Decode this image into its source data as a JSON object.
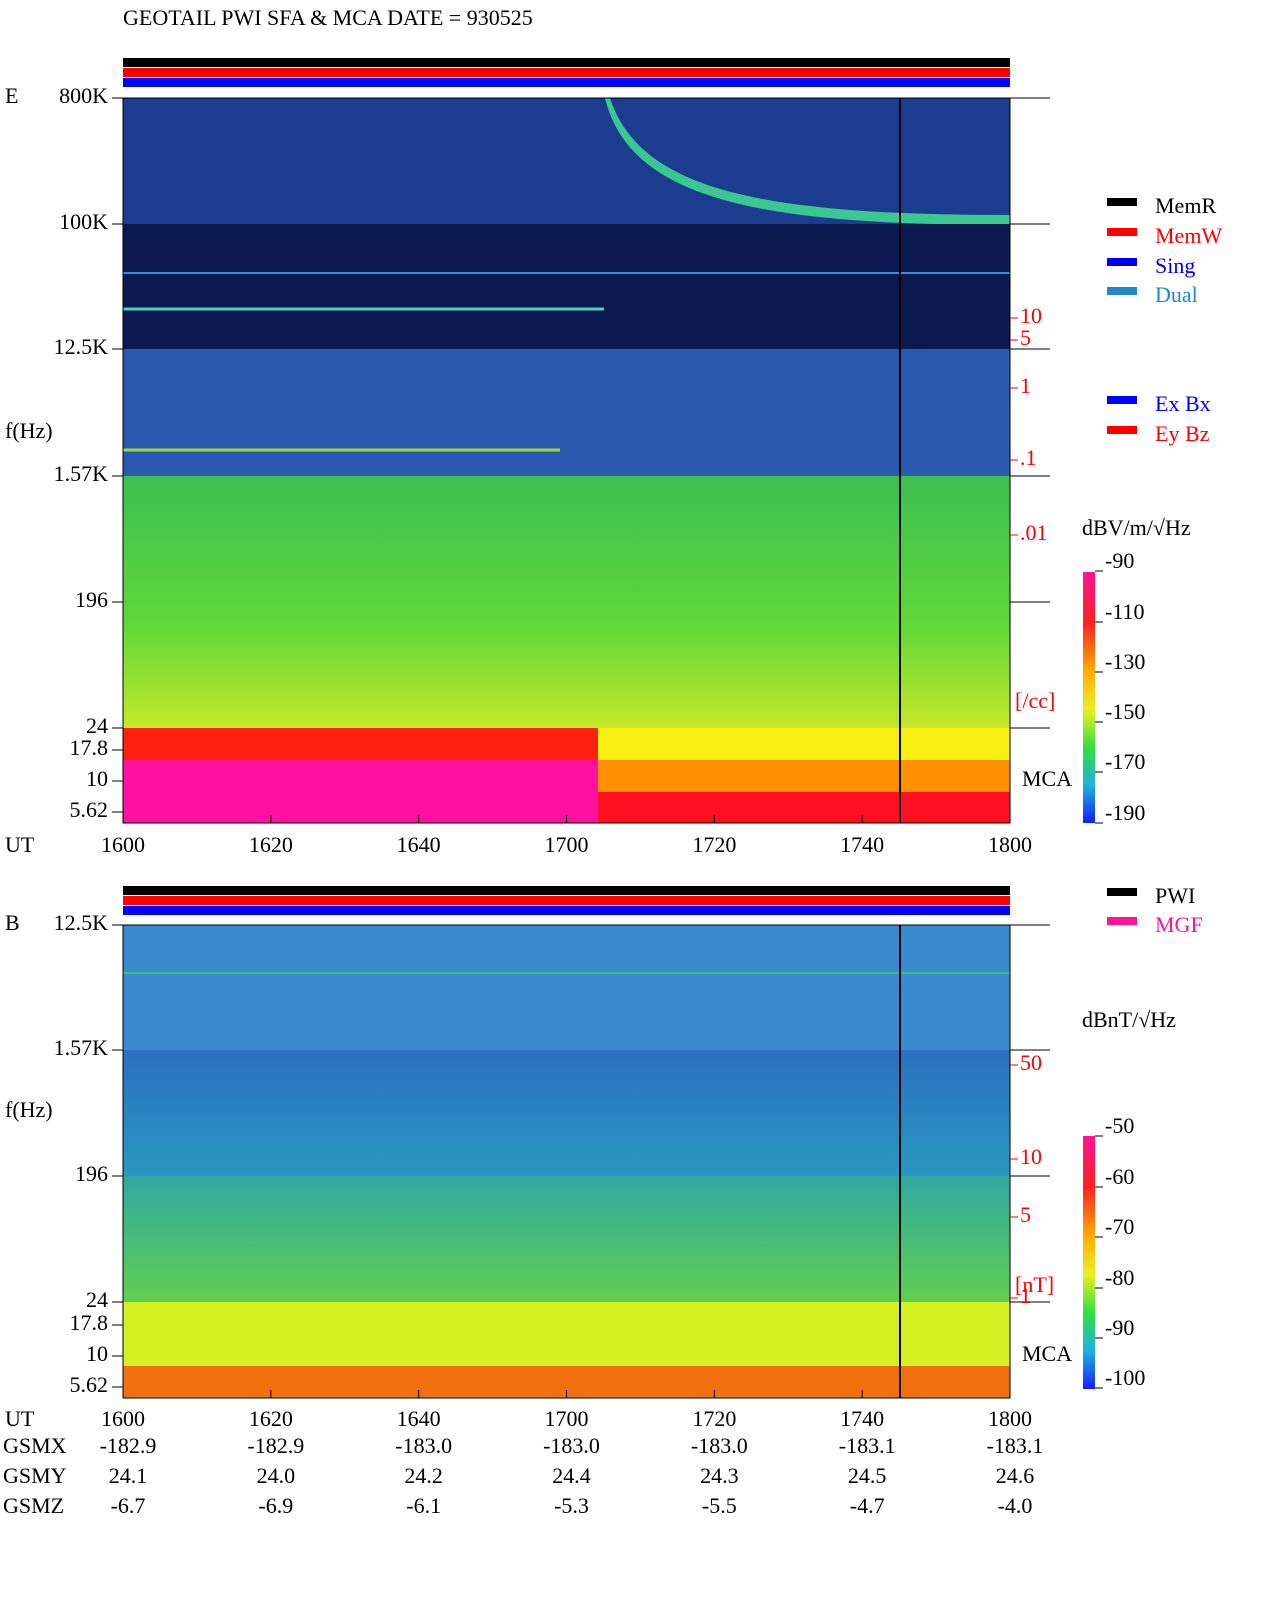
{
  "title": "GEOTAIL  PWI SFA & MCA   DATE = 930525",
  "panels": [
    {
      "label": "E",
      "ylabel": "f(Hz)",
      "yticks": [
        "800K",
        "100K",
        "12.5K",
        "1.57K",
        "196",
        "24",
        "17.8",
        "10",
        "5.62"
      ],
      "density_ticks": [
        "10",
        "5",
        "1",
        ".1",
        ".01"
      ],
      "density_unit": "[/cc]",
      "mca": "MCA",
      "legend": [
        {
          "name": "MemR",
          "color": "#000000"
        },
        {
          "name": "MemW",
          "color": "#ff0000"
        },
        {
          "name": "Sing",
          "color": "#0000ff"
        },
        {
          "name": "Dual",
          "color": "#1e88c8"
        }
      ],
      "legend2": [
        {
          "name": "Ex Bx",
          "color": "#0000ff"
        },
        {
          "name": "Ey Bz",
          "color": "#ff0000"
        }
      ],
      "colorbar": {
        "unit": "dBV/m/√Hz",
        "ticks": [
          "-90",
          "-110",
          "-130",
          "-150",
          "-170",
          "-190"
        ]
      },
      "xlabel": "UT",
      "xticks": [
        "1600",
        "1620",
        "1640",
        "1700",
        "1720",
        "1740",
        "1800"
      ]
    },
    {
      "label": "B",
      "ylabel": "f(Hz)",
      "yticks": [
        "12.5K",
        "1.57K",
        "196",
        "24",
        "17.8",
        "10",
        "5.62"
      ],
      "density_ticks": [
        "50",
        "10",
        "5",
        "1"
      ],
      "density_unit": "[nT]",
      "mca": "MCA",
      "legend": [
        {
          "name": "PWI",
          "color": "#000000"
        },
        {
          "name": "MGF",
          "color": "#ff1493"
        }
      ],
      "colorbar": {
        "unit": "dBnT/√Hz",
        "ticks": [
          "-50",
          "-60",
          "-70",
          "-80",
          "-90",
          "-100"
        ]
      },
      "xlabel": "UT",
      "xticks": [
        "1600",
        "1620",
        "1640",
        "1700",
        "1720",
        "1740",
        "1800"
      ]
    }
  ],
  "orbit": [
    {
      "name": "GSMX",
      "values": [
        "-182.9",
        "-182.9",
        "-183.0",
        "-183.0",
        "-183.0",
        "-183.1",
        "-183.1"
      ]
    },
    {
      "name": "GSMY",
      "values": [
        "24.1",
        "24.0",
        "24.2",
        "24.4",
        "24.3",
        "24.5",
        "24.6"
      ]
    },
    {
      "name": "GSMZ",
      "values": [
        "-6.7",
        "-6.9",
        "-6.1",
        "-5.3",
        "-5.5",
        "-4.7",
        "-4.0"
      ]
    }
  ]
}
